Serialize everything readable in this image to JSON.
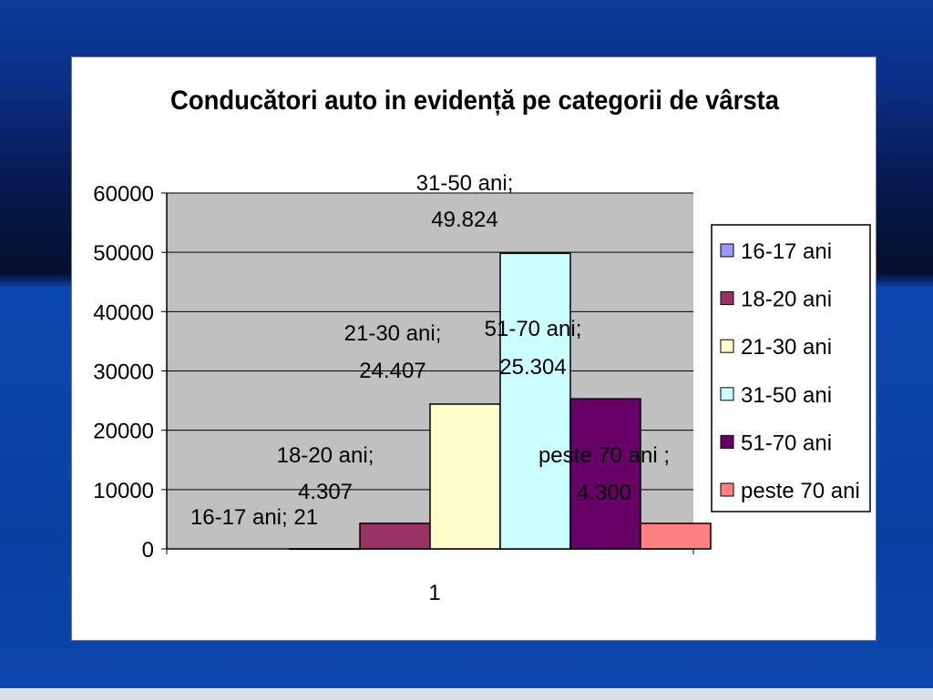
{
  "chart_data": {
    "type": "bar",
    "title": "Conducători auto in evidență pe categorii de vârsta",
    "categories": [
      "1"
    ],
    "ylim": [
      0,
      60000
    ],
    "yticks": [
      "0",
      "10000",
      "20000",
      "30000",
      "40000",
      "50000",
      "60000"
    ],
    "grid": true,
    "legend_position": "right",
    "series": [
      {
        "name": "16-17 ani",
        "values": [
          21
        ],
        "color": "#9999ff",
        "label_line1": "16-17 ani; 21",
        "label_line2": ""
      },
      {
        "name": "18-20 ani",
        "values": [
          4307
        ],
        "color": "#993366",
        "label_line1": "18-20 ani;",
        "label_line2": "4.307"
      },
      {
        "name": "21-30 ani",
        "values": [
          24407
        ],
        "color": "#ffffcc",
        "label_line1": "21-30 ani;",
        "label_line2": "24.407"
      },
      {
        "name": "31-50 ani",
        "values": [
          49824
        ],
        "color": "#ccffff",
        "label_line1": "31-50 ani;",
        "label_line2": "49.824"
      },
      {
        "name": "51-70 ani",
        "values": [
          25304
        ],
        "color": "#660066",
        "label_line1": "51-70 ani;",
        "label_line2": "25.304"
      },
      {
        "name": "peste 70 ani",
        "values": [
          4300
        ],
        "color": "#ff8080",
        "label_line1": "peste 70 ani ;",
        "label_line2": "4.300"
      }
    ]
  }
}
